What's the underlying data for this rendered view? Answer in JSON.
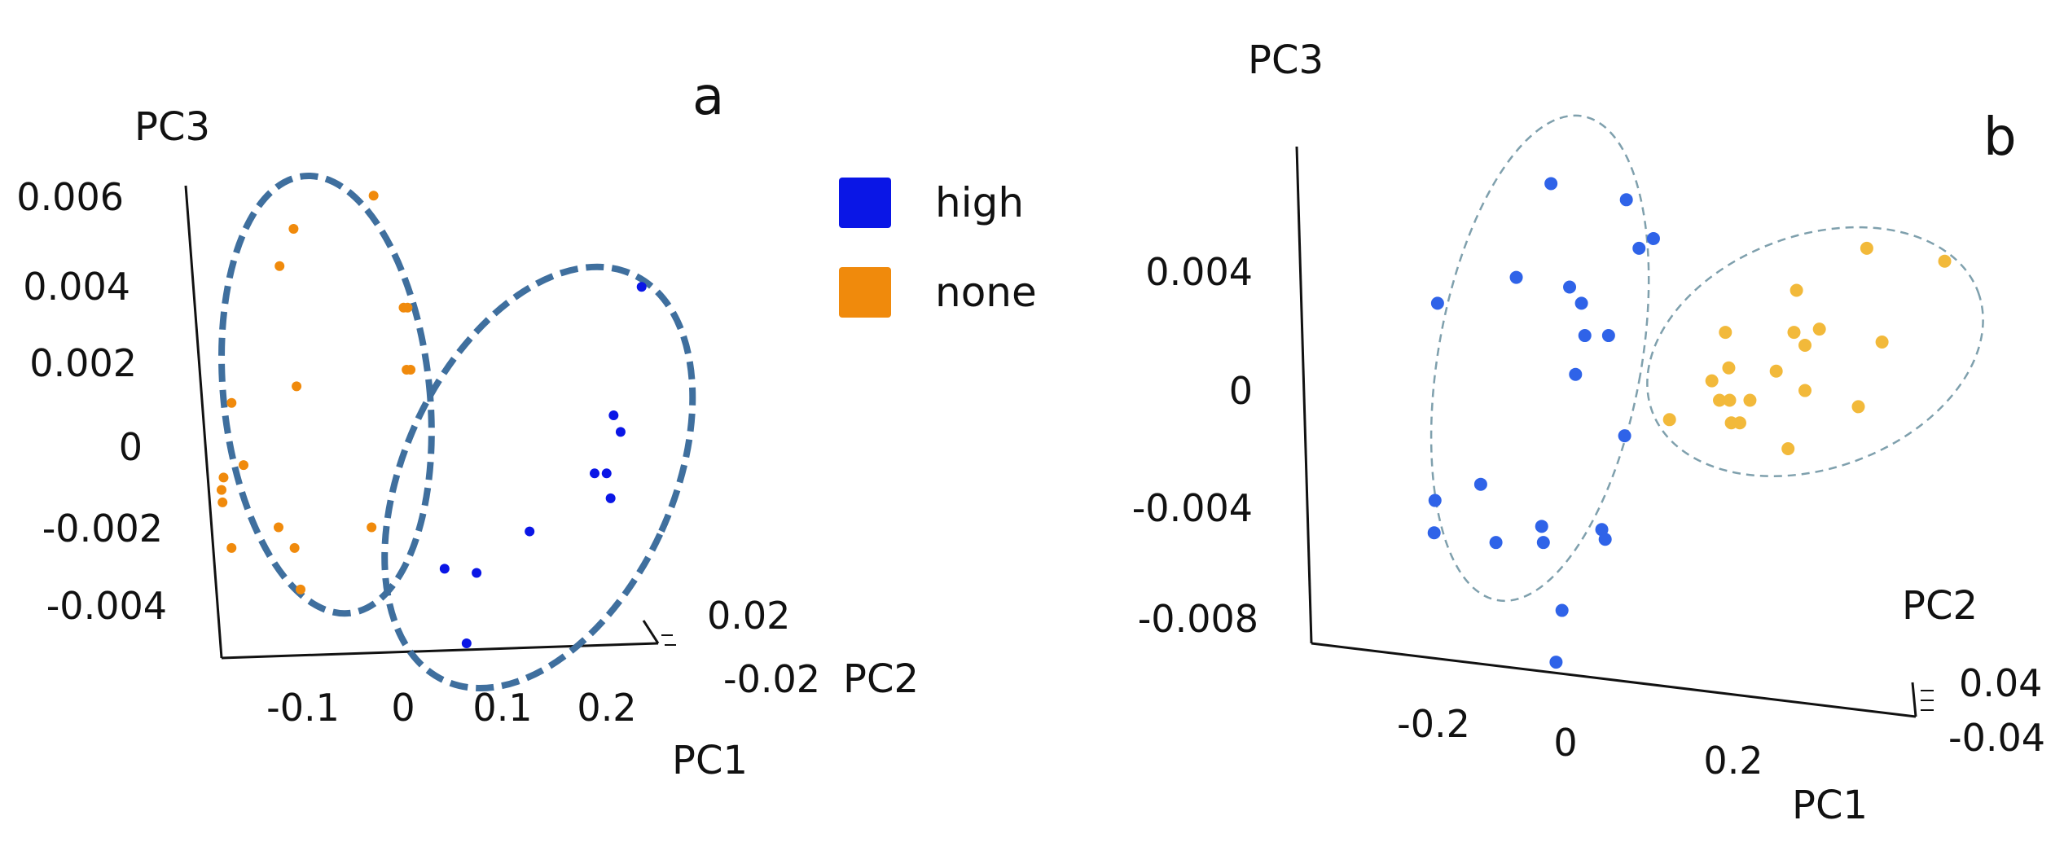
{
  "legend": {
    "items": [
      {
        "label": "high",
        "color": "#0a16e6"
      },
      {
        "label": "none",
        "color": "#f08a0c"
      }
    ]
  },
  "chart_data": [
    {
      "type": "scatter",
      "panel_label": "a",
      "projection": "3d",
      "title": "",
      "xlabel": "PC1",
      "ylabel": "PC2",
      "zlabel": "PC3",
      "pc1_ticks": [
        "-0.1",
        "0",
        "0.1",
        "0.2"
      ],
      "pc2_ticks": [
        "0.02",
        "-0.02"
      ],
      "pc3_ticks": [
        "0.006",
        "0.004",
        "0.002",
        "0",
        "-0.002",
        "-0.004"
      ],
      "pc1_range": [
        -0.18,
        0.25
      ],
      "pc3_range": [
        -0.0048,
        0.0063
      ],
      "grid": false,
      "ellipse_style": {
        "color": "#3f6f9e",
        "dashed": true,
        "weight": "thick"
      },
      "series": [
        {
          "name": "none",
          "color": "#f08a0c",
          "points": [
            {
              "pc1": -0.028,
              "pc3": 0.006
            },
            {
              "pc1": -0.108,
              "pc3": 0.0052
            },
            {
              "pc1": -0.122,
              "pc3": 0.0043
            },
            {
              "pc1": 0.002,
              "pc3": 0.0033
            },
            {
              "pc1": 0.006,
              "pc3": 0.0033
            },
            {
              "pc1": 0.005,
              "pc3": 0.0018
            },
            {
              "pc1": 0.009,
              "pc3": 0.0018
            },
            {
              "pc1": -0.105,
              "pc3": 0.0014
            },
            {
              "pc1": -0.17,
              "pc3": 0.001
            },
            {
              "pc1": -0.158,
              "pc3": -0.0005
            },
            {
              "pc1": -0.178,
              "pc3": -0.0008
            },
            {
              "pc1": -0.18,
              "pc3": -0.0011
            },
            {
              "pc1": -0.179,
              "pc3": -0.0014
            },
            {
              "pc1": -0.123,
              "pc3": -0.002
            },
            {
              "pc1": -0.03,
              "pc3": -0.002
            },
            {
              "pc1": -0.17,
              "pc3": -0.0025
            },
            {
              "pc1": -0.107,
              "pc3": -0.0025
            },
            {
              "pc1": -0.101,
              "pc3": -0.0035
            }
          ]
        },
        {
          "name": "high",
          "color": "#0a16e6",
          "points": [
            {
              "pc1": 0.24,
              "pc3": 0.0038
            },
            {
              "pc1": 0.212,
              "pc3": 0.0007
            },
            {
              "pc1": 0.219,
              "pc3": 0.0003
            },
            {
              "pc1": 0.193,
              "pc3": -0.0007
            },
            {
              "pc1": 0.205,
              "pc3": -0.0007
            },
            {
              "pc1": 0.209,
              "pc3": -0.0013
            },
            {
              "pc1": 0.128,
              "pc3": -0.0021
            },
            {
              "pc1": 0.043,
              "pc3": -0.003
            },
            {
              "pc1": 0.075,
              "pc3": -0.0031
            },
            {
              "pc1": 0.065,
              "pc3": -0.0048
            }
          ]
        }
      ],
      "ellipses": [
        {
          "group": "none",
          "cx_pc1": -0.075,
          "cy_pc3": 0.0012,
          "rx_pc1": 0.103,
          "ry_pc3": 0.0053,
          "rotation_deg": -6
        },
        {
          "group": "high",
          "cx_pc1": 0.137,
          "cy_pc3": -0.0008,
          "rx_pc1": 0.134,
          "ry_pc3": 0.0054,
          "rotation_deg": 25
        }
      ]
    },
    {
      "type": "scatter",
      "panel_label": "b",
      "projection": "3d",
      "title": "",
      "xlabel": "PC1",
      "ylabel": "PC2",
      "zlabel": "PC3",
      "pc1_ticks": [
        "-0.2",
        "0",
        "0.2"
      ],
      "pc2_ticks": [
        "0.04",
        "-0.04"
      ],
      "pc3_ticks": [
        "0.004",
        "0",
        "-0.004",
        "-0.008"
      ],
      "pc1_range": [
        -0.36,
        0.4
      ],
      "pc3_range": [
        -0.0095,
        0.0075
      ],
      "grid": false,
      "ellipse_style": {
        "color": "#7fa0ad",
        "dashed": true,
        "weight": "thin"
      },
      "series": [
        {
          "name": "high",
          "color": "#2f63e8",
          "points": [
            {
              "pc1": -0.077,
              "pc3": 0.0056
            },
            {
              "pc1": 0.012,
              "pc3": 0.0051
            },
            {
              "pc1": 0.044,
              "pc3": 0.0039
            },
            {
              "pc1": 0.027,
              "pc3": 0.0036
            },
            {
              "pc1": -0.118,
              "pc3": 0.0027
            },
            {
              "pc1": -0.055,
              "pc3": 0.0024
            },
            {
              "pc1": -0.041,
              "pc3": 0.0019
            },
            {
              "pc1": -0.211,
              "pc3": 0.0019
            },
            {
              "pc1": -0.037,
              "pc3": 0.0009
            },
            {
              "pc1": -0.009,
              "pc3": 0.0009
            },
            {
              "pc1": -0.048,
              "pc3": -0.0003
            },
            {
              "pc1": 0.01,
              "pc3": -0.0022
            },
            {
              "pc1": -0.16,
              "pc3": -0.0037
            },
            {
              "pc1": -0.214,
              "pc3": -0.0042
            },
            {
              "pc1": -0.215,
              "pc3": -0.0052
            },
            {
              "pc1": -0.088,
              "pc3": -0.005
            },
            {
              "pc1": -0.017,
              "pc3": -0.0051
            },
            {
              "pc1": -0.013,
              "pc3": -0.0054
            },
            {
              "pc1": -0.142,
              "pc3": -0.0055
            },
            {
              "pc1": -0.086,
              "pc3": -0.0055
            },
            {
              "pc1": -0.064,
              "pc3": -0.0076
            },
            {
              "pc1": -0.071,
              "pc3": -0.0092
            }
          ]
        },
        {
          "name": "none",
          "color": "#f2b93a",
          "points": [
            {
              "pc1": 0.388,
              "pc3": 0.0032
            },
            {
              "pc1": 0.296,
              "pc3": 0.0036
            },
            {
              "pc1": 0.213,
              "pc3": 0.0023
            },
            {
              "pc1": 0.129,
              "pc3": 0.001
            },
            {
              "pc1": 0.21,
              "pc3": 0.001
            },
            {
              "pc1": 0.24,
              "pc3": 0.0011
            },
            {
              "pc1": 0.223,
              "pc3": 0.0006
            },
            {
              "pc1": 0.314,
              "pc3": 0.0007
            },
            {
              "pc1": 0.133,
              "pc3": -0.0001
            },
            {
              "pc1": 0.189,
              "pc3": -0.0002
            },
            {
              "pc1": 0.113,
              "pc3": -0.0005
            },
            {
              "pc1": 0.223,
              "pc3": -0.0008
            },
            {
              "pc1": 0.122,
              "pc3": -0.0011
            },
            {
              "pc1": 0.134,
              "pc3": -0.0011
            },
            {
              "pc1": 0.158,
              "pc3": -0.0011
            },
            {
              "pc1": 0.286,
              "pc3": -0.0013
            },
            {
              "pc1": 0.136,
              "pc3": -0.0018
            },
            {
              "pc1": 0.146,
              "pc3": -0.0018
            },
            {
              "pc1": 0.063,
              "pc3": -0.0017
            },
            {
              "pc1": 0.203,
              "pc3": -0.0026
            }
          ]
        }
      ],
      "ellipses": [
        {
          "group": "high",
          "cx_pc1": -0.09,
          "cy_pc3": 0.0002,
          "rx_pc1": 0.12,
          "ry_pc3": 0.0076,
          "rotation_deg": 10
        },
        {
          "group": "none",
          "cx_pc1": 0.235,
          "cy_pc3": 0.0004,
          "rx_pc1": 0.205,
          "ry_pc3": 0.0036,
          "rotation_deg": -20
        }
      ]
    }
  ]
}
